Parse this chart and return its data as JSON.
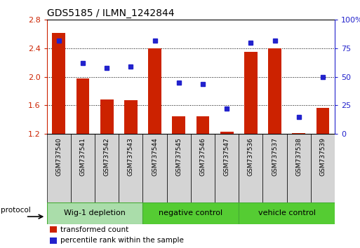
{
  "title": "GDS5185 / ILMN_1242844",
  "samples": [
    "GSM737540",
    "GSM737541",
    "GSM737542",
    "GSM737543",
    "GSM737544",
    "GSM737545",
    "GSM737546",
    "GSM737547",
    "GSM737536",
    "GSM737537",
    "GSM737538",
    "GSM737539"
  ],
  "transformed_count": [
    2.62,
    1.98,
    1.68,
    1.67,
    2.4,
    1.45,
    1.45,
    1.23,
    2.35,
    2.4,
    1.21,
    1.57
  ],
  "percentile_rank": [
    82,
    62,
    58,
    59,
    82,
    45,
    44,
    22,
    80,
    82,
    15,
    50
  ],
  "bar_color": "#cc2200",
  "dot_color": "#2222cc",
  "ylim_left": [
    1.2,
    2.8
  ],
  "ylim_right": [
    0,
    100
  ],
  "yticks_left": [
    1.2,
    1.6,
    2.0,
    2.4,
    2.8
  ],
  "yticks_right": [
    0,
    25,
    50,
    75,
    100
  ],
  "ytick_labels_right": [
    "0",
    "25",
    "50",
    "75",
    "100%"
  ],
  "groups": [
    {
      "label": "Wig-1 depletion",
      "start": 0,
      "end": 3
    },
    {
      "label": "negative control",
      "start": 4,
      "end": 7
    },
    {
      "label": "vehicle control",
      "start": 8,
      "end": 11
    }
  ],
  "group_color_light": "#cceecc",
  "group_color_dark": "#55cc44",
  "group_border_color": "#44aa33",
  "bar_bottom": 1.2,
  "xlabel_color": "#cc2200",
  "dot_color_blue": "#2222cc",
  "legend_items": [
    {
      "label": "transformed count",
      "color": "#cc2200"
    },
    {
      "label": "percentile rank within the sample",
      "color": "#2222cc"
    }
  ]
}
